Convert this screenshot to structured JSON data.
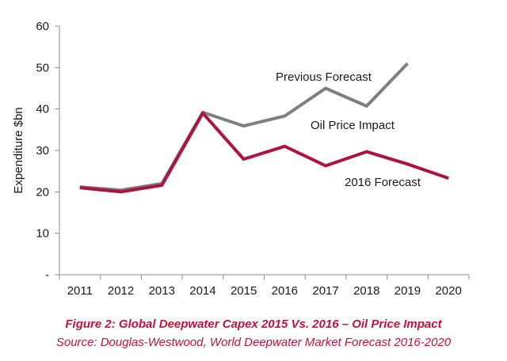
{
  "chart_data": {
    "type": "line",
    "categories": [
      "2011",
      "2012",
      "2013",
      "2014",
      "2015",
      "2016",
      "2017",
      "2018",
      "2019",
      "2020"
    ],
    "ylabel": "Expenditure $bn",
    "xlabel": "",
    "ylim": [
      0,
      60
    ],
    "yticks": [
      {
        "value": 0,
        "label": "-"
      },
      {
        "value": 10,
        "label": "10"
      },
      {
        "value": 20,
        "label": "20"
      },
      {
        "value": 30,
        "label": "30"
      },
      {
        "value": 40,
        "label": "40"
      },
      {
        "value": 50,
        "label": "50"
      },
      {
        "value": 60,
        "label": "60"
      }
    ],
    "grid": false,
    "series": [
      {
        "name": "Previous Forecast",
        "color": "#7f7f7f",
        "values": [
          21.2,
          20.4,
          22.0,
          39.2,
          35.9,
          38.3,
          45.0,
          40.7,
          51.0,
          null
        ]
      },
      {
        "name": "2016 Forecast",
        "color": "#b0123e",
        "values": [
          21.0,
          20.0,
          21.6,
          39.0,
          27.9,
          31.0,
          26.3,
          29.7,
          26.7,
          23.3
        ]
      }
    ],
    "annotations": [
      {
        "text": "Previous Forecast"
      },
      {
        "text": "Oil Price Impact"
      },
      {
        "text": "2016 Forecast"
      }
    ]
  },
  "caption": {
    "title": "Figure 2: Global Deepwater Capex 2015 Vs. 2016 – Oil Price Impact",
    "source": "Source: Douglas-Westwood, World Deepwater Market Forecast 2016-2020"
  }
}
